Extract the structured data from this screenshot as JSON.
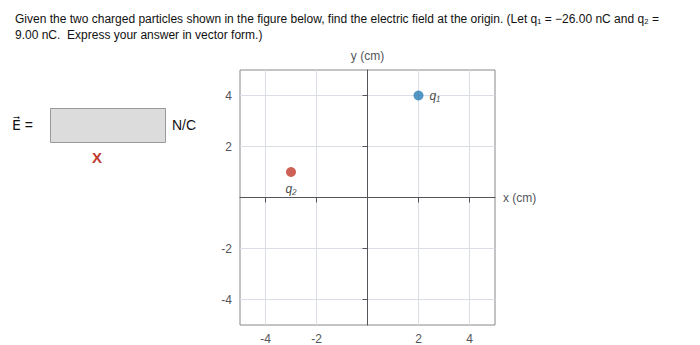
{
  "chart_data": {
    "type": "scatter",
    "title": "Given the two charged particles shown in the figure below, find the electric field at the origin. (Let q₁ = −26.00 nC and q₂ = 9.00 nC.  Express your answer in vector form.)",
    "annotations": [
      {
        "text": "E⃗ ="
      },
      {
        "text": "N/C"
      },
      {
        "text": "X",
        "color": "#c0392b"
      }
    ],
    "xlabel": "x (cm)",
    "ylabel": "y (cm)",
    "xlim": [
      -5,
      5
    ],
    "ylim": [
      -5,
      5
    ],
    "xticks": [
      -4,
      -2,
      2,
      4
    ],
    "yticks": [
      -4,
      -2,
      2,
      4
    ],
    "grid": true,
    "series": [
      {
        "name": "q₁",
        "color": "#2a7db5",
        "x": [
          2
        ],
        "y": [
          4
        ]
      },
      {
        "name": "q₂",
        "color": "#c0392b",
        "x": [
          -3
        ],
        "y": [
          1
        ]
      }
    ]
  }
}
